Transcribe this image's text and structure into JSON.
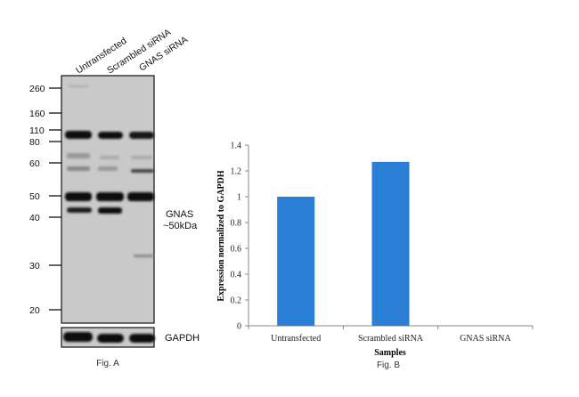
{
  "fig_a": {
    "caption": "Fig. A",
    "lanes": [
      "Untransfected",
      "Scrambled siRNA",
      "GNAS siRNA"
    ],
    "markers": [
      "260",
      "160",
      "110",
      "80",
      "60",
      "50",
      "40",
      "30",
      "20"
    ],
    "target_label": "GNAS",
    "target_size": "~50kDa",
    "loading_control": "GAPDH"
  },
  "chart_data": {
    "type": "bar",
    "caption": "Fig. B",
    "categories": [
      "Untransfected",
      "Scrambled siRNA",
      "GNAS siRNA"
    ],
    "values": [
      1.0,
      1.27,
      0.0
    ],
    "xlabel": "Samples",
    "ylabel": "Expression normalized to GAPDH",
    "ylim": [
      0,
      1.4
    ],
    "yticks": [
      "0",
      "0.2",
      "0.4",
      "0.6",
      "0.8",
      "1",
      "1.2",
      "1.4"
    ],
    "grid": false,
    "bar_color": "#2a7fd4"
  }
}
